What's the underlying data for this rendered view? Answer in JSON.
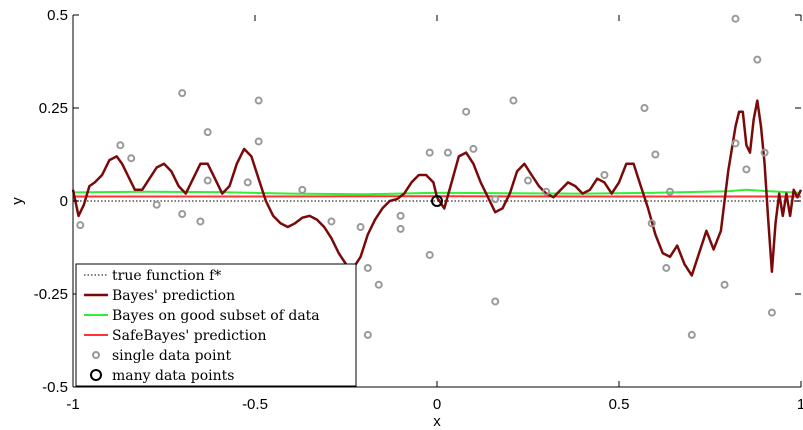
{
  "chart_data": {
    "type": "line",
    "xlabel": "x",
    "ylabel": "y",
    "xlim": [
      -1,
      1
    ],
    "ylim": [
      -0.5,
      0.5
    ],
    "xticks": [
      -1,
      -0.5,
      0,
      0.5,
      1
    ],
    "xtick_labels": [
      "-1",
      "-0.5",
      "0",
      "0.5",
      "1"
    ],
    "yticks": [
      -0.5,
      -0.25,
      0,
      0.25,
      0.5
    ],
    "ytick_labels": [
      "-0.5",
      "-0.25",
      "0",
      "0.25",
      "0.5"
    ],
    "grid": false,
    "legend_position": "bottom-left",
    "series": [
      {
        "name": "true function f*",
        "color": "#555555",
        "style": "dotted",
        "x": [
          -1,
          1
        ],
        "y": [
          0,
          0
        ]
      },
      {
        "name": "Bayes' prediction",
        "color": "#7a0a0a",
        "style": "solid",
        "x": [
          -1.0,
          -0.985,
          -0.97,
          -0.955,
          -0.94,
          -0.92,
          -0.9,
          -0.88,
          -0.865,
          -0.85,
          -0.83,
          -0.81,
          -0.79,
          -0.77,
          -0.75,
          -0.73,
          -0.71,
          -0.69,
          -0.67,
          -0.65,
          -0.63,
          -0.61,
          -0.59,
          -0.57,
          -0.55,
          -0.53,
          -0.51,
          -0.49,
          -0.47,
          -0.45,
          -0.43,
          -0.41,
          -0.39,
          -0.37,
          -0.35,
          -0.33,
          -0.31,
          -0.29,
          -0.27,
          -0.25,
          -0.23,
          -0.21,
          -0.19,
          -0.17,
          -0.15,
          -0.13,
          -0.11,
          -0.09,
          -0.07,
          -0.05,
          -0.03,
          -0.01,
          0.0,
          0.02,
          0.04,
          0.06,
          0.08,
          0.1,
          0.12,
          0.14,
          0.16,
          0.18,
          0.2,
          0.22,
          0.24,
          0.26,
          0.28,
          0.3,
          0.32,
          0.34,
          0.36,
          0.38,
          0.4,
          0.42,
          0.44,
          0.46,
          0.48,
          0.5,
          0.52,
          0.54,
          0.56,
          0.58,
          0.6,
          0.62,
          0.64,
          0.66,
          0.68,
          0.7,
          0.72,
          0.74,
          0.76,
          0.78,
          0.8,
          0.82,
          0.83,
          0.84,
          0.85,
          0.86,
          0.87,
          0.88,
          0.89,
          0.9,
          0.91,
          0.92,
          0.93,
          0.94,
          0.95,
          0.96,
          0.97,
          0.98,
          0.99,
          1.0
        ],
        "y": [
          0.03,
          -0.04,
          -0.01,
          0.04,
          0.05,
          0.07,
          0.11,
          0.12,
          0.1,
          0.07,
          0.03,
          0.03,
          0.06,
          0.09,
          0.1,
          0.08,
          0.04,
          0.02,
          0.06,
          0.1,
          0.1,
          0.06,
          0.02,
          0.04,
          0.1,
          0.14,
          0.12,
          0.06,
          0.0,
          -0.04,
          -0.06,
          -0.07,
          -0.06,
          -0.045,
          -0.04,
          -0.05,
          -0.07,
          -0.1,
          -0.14,
          -0.17,
          -0.18,
          -0.15,
          -0.09,
          -0.05,
          -0.02,
          0.0,
          0.005,
          0.02,
          0.05,
          0.07,
          0.07,
          0.05,
          0.01,
          -0.02,
          0.05,
          0.12,
          0.13,
          0.1,
          0.05,
          0.01,
          -0.03,
          -0.02,
          0.02,
          0.08,
          0.1,
          0.07,
          0.04,
          0.02,
          0.01,
          0.03,
          0.05,
          0.04,
          0.02,
          0.03,
          0.06,
          0.05,
          0.02,
          0.05,
          0.1,
          0.1,
          0.04,
          -0.02,
          -0.09,
          -0.14,
          -0.15,
          -0.12,
          -0.17,
          -0.2,
          -0.14,
          -0.08,
          -0.13,
          -0.08,
          0.08,
          0.2,
          0.24,
          0.24,
          0.15,
          0.13,
          0.22,
          0.27,
          0.2,
          0.1,
          -0.05,
          -0.19,
          -0.06,
          0.02,
          -0.04,
          0.02,
          -0.04,
          0.03,
          0.01,
          0.03
        ]
      },
      {
        "name": "Bayes on good subset of data",
        "color": "#33ee33",
        "style": "solid",
        "x": [
          -1.0,
          -0.8,
          -0.6,
          -0.4,
          -0.2,
          0.0,
          0.2,
          0.4,
          0.6,
          0.8,
          0.85,
          0.9,
          1.0
        ],
        "y": [
          0.023,
          0.025,
          0.024,
          0.02,
          0.018,
          0.022,
          0.021,
          0.02,
          0.022,
          0.026,
          0.03,
          0.027,
          0.022
        ]
      },
      {
        "name": "SafeBayes' prediction",
        "color": "#ff3333",
        "style": "solid",
        "x": [
          -1.0,
          -0.5,
          0.0,
          0.5,
          1.0
        ],
        "y": [
          0.012,
          0.012,
          0.013,
          0.012,
          0.012
        ]
      }
    ],
    "single_data_points_label": "single data point",
    "single_data_points": [
      {
        "x": -0.98,
        "y": -0.065
      },
      {
        "x": -0.87,
        "y": 0.15
      },
      {
        "x": -0.84,
        "y": 0.115
      },
      {
        "x": -0.77,
        "y": -0.01
      },
      {
        "x": -0.7,
        "y": 0.29
      },
      {
        "x": -0.7,
        "y": -0.035
      },
      {
        "x": -0.65,
        "y": -0.055
      },
      {
        "x": -0.63,
        "y": 0.185
      },
      {
        "x": -0.63,
        "y": 0.055
      },
      {
        "x": -0.52,
        "y": 0.05
      },
      {
        "x": -0.49,
        "y": 0.27
      },
      {
        "x": -0.49,
        "y": 0.16
      },
      {
        "x": -0.37,
        "y": 0.03
      },
      {
        "x": -0.29,
        "y": -0.055
      },
      {
        "x": -0.21,
        "y": -0.07
      },
      {
        "x": -0.19,
        "y": -0.18
      },
      {
        "x": -0.19,
        "y": -0.36
      },
      {
        "x": -0.16,
        "y": -0.225
      },
      {
        "x": -0.1,
        "y": -0.04
      },
      {
        "x": -0.1,
        "y": -0.075
      },
      {
        "x": -0.02,
        "y": 0.13
      },
      {
        "x": -0.02,
        "y": -0.145
      },
      {
        "x": 0.03,
        "y": 0.13
      },
      {
        "x": 0.08,
        "y": 0.24
      },
      {
        "x": 0.1,
        "y": 0.14
      },
      {
        "x": 0.16,
        "y": 0.005
      },
      {
        "x": 0.16,
        "y": -0.27
      },
      {
        "x": 0.21,
        "y": 0.27
      },
      {
        "x": 0.25,
        "y": 0.055
      },
      {
        "x": 0.3,
        "y": 0.025
      },
      {
        "x": 0.46,
        "y": 0.07
      },
      {
        "x": 0.57,
        "y": 0.25
      },
      {
        "x": 0.59,
        "y": -0.06
      },
      {
        "x": 0.6,
        "y": 0.125
      },
      {
        "x": 0.63,
        "y": -0.18
      },
      {
        "x": 0.64,
        "y": 0.025
      },
      {
        "x": 0.7,
        "y": -0.36
      },
      {
        "x": 0.79,
        "y": -0.225
      },
      {
        "x": 0.82,
        "y": 0.155
      },
      {
        "x": 0.82,
        "y": 0.49
      },
      {
        "x": 0.85,
        "y": 0.085
      },
      {
        "x": 0.88,
        "y": 0.38
      },
      {
        "x": 0.9,
        "y": 0.13
      },
      {
        "x": 0.92,
        "y": -0.3
      }
    ],
    "many_data_points_label": "many data points",
    "many_data_points": [
      {
        "x": 0.0,
        "y": 0.0
      }
    ]
  }
}
